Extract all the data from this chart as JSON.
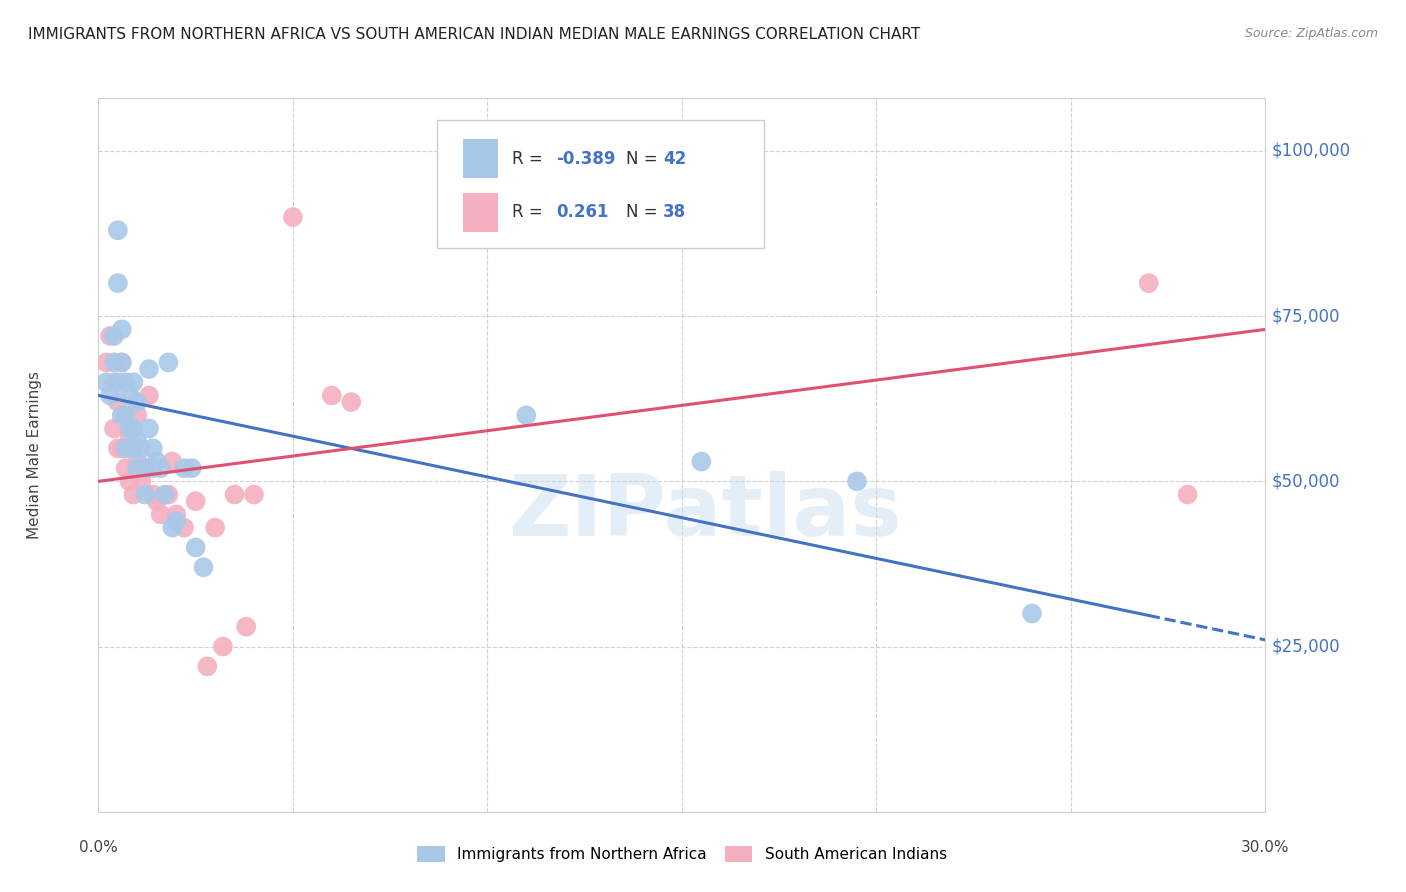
{
  "title": "IMMIGRANTS FROM NORTHERN AFRICA VS SOUTH AMERICAN INDIAN MEDIAN MALE EARNINGS CORRELATION CHART",
  "source": "Source: ZipAtlas.com",
  "ylabel": "Median Male Earnings",
  "yticks": [
    0,
    25000,
    50000,
    75000,
    100000
  ],
  "ytick_labels": [
    "",
    "$25,000",
    "$50,000",
    "$75,000",
    "$100,000"
  ],
  "xlim": [
    0.0,
    0.3
  ],
  "ylim": [
    0,
    108000
  ],
  "blue_color": "#a8c8e8",
  "pink_color": "#f4b0c0",
  "blue_line_color": "#4472c4",
  "pink_line_color": "#e05070",
  "watermark": "ZIPatlas",
  "blue_scatter_x": [
    0.002,
    0.003,
    0.004,
    0.004,
    0.005,
    0.005,
    0.005,
    0.006,
    0.006,
    0.006,
    0.007,
    0.007,
    0.007,
    0.008,
    0.008,
    0.009,
    0.009,
    0.009,
    0.01,
    0.01,
    0.01,
    0.011,
    0.012,
    0.012,
    0.013,
    0.013,
    0.014,
    0.014,
    0.015,
    0.016,
    0.017,
    0.018,
    0.019,
    0.02,
    0.022,
    0.024,
    0.025,
    0.027,
    0.11,
    0.155,
    0.195,
    0.24
  ],
  "blue_scatter_y": [
    65000,
    63000,
    68000,
    72000,
    88000,
    80000,
    65000,
    68000,
    73000,
    60000,
    65000,
    60000,
    55000,
    63000,
    58000,
    65000,
    58000,
    55000,
    62000,
    56000,
    52000,
    55000,
    52000,
    48000,
    67000,
    58000,
    55000,
    52000,
    53000,
    52000,
    48000,
    68000,
    43000,
    44000,
    52000,
    52000,
    40000,
    37000,
    60000,
    53000,
    50000,
    30000
  ],
  "pink_scatter_x": [
    0.002,
    0.003,
    0.004,
    0.004,
    0.005,
    0.005,
    0.006,
    0.006,
    0.007,
    0.007,
    0.008,
    0.008,
    0.009,
    0.009,
    0.01,
    0.01,
    0.011,
    0.012,
    0.013,
    0.014,
    0.015,
    0.016,
    0.018,
    0.019,
    0.02,
    0.022,
    0.025,
    0.028,
    0.03,
    0.032,
    0.035,
    0.038,
    0.04,
    0.05,
    0.06,
    0.065,
    0.27,
    0.28
  ],
  "pink_scatter_y": [
    68000,
    72000,
    65000,
    58000,
    62000,
    55000,
    68000,
    55000,
    60000,
    52000,
    57000,
    50000,
    55000,
    48000,
    60000,
    53000,
    50000,
    52000,
    63000,
    48000,
    47000,
    45000,
    48000,
    53000,
    45000,
    43000,
    47000,
    22000,
    43000,
    25000,
    48000,
    28000,
    48000,
    90000,
    63000,
    62000,
    80000,
    48000
  ],
  "blue_line_x0": 0.0,
  "blue_line_y0": 63000,
  "blue_line_x1": 0.3,
  "blue_line_y1": 26000,
  "pink_line_x0": 0.0,
  "pink_line_y0": 50000,
  "pink_line_x1": 0.3,
  "pink_line_y1": 73000
}
